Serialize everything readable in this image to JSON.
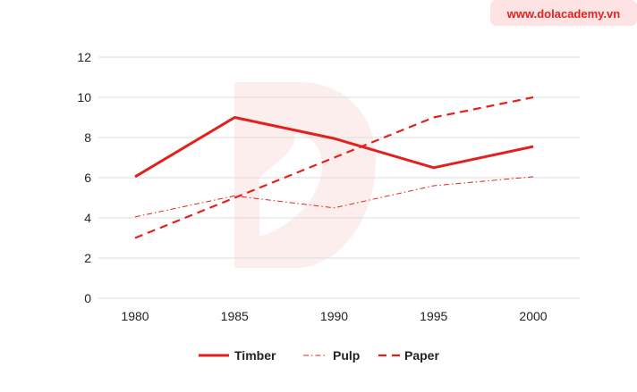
{
  "watermark": {
    "text": "www.dolacademy.vn",
    "text_color": "#e3211c",
    "badge_color": "#fde3e3"
  },
  "colors": {
    "accent": "#e3211c",
    "grid": "#dcdcdc",
    "logo_tint": "#fdeeee"
  },
  "chart_data": {
    "type": "line",
    "categories": [
      "1980",
      "1985",
      "1990",
      "1995",
      "2000"
    ],
    "series": [
      {
        "name": "Timber",
        "values": [
          6.05,
          9.0,
          7.95,
          6.5,
          7.55
        ],
        "style": "solid"
      },
      {
        "name": "Pulp",
        "values": [
          4.05,
          5.1,
          4.5,
          5.6,
          6.05
        ],
        "style": "dash-dot"
      },
      {
        "name": "Paper",
        "values": [
          3.0,
          5.0,
          7.0,
          9.0,
          10.0
        ],
        "style": "dashed"
      }
    ],
    "yticks": [
      "0",
      "2",
      "4",
      "6",
      "8",
      "10",
      "12"
    ],
    "ylim": [
      0,
      12
    ],
    "grid": "horizontal",
    "legend_position": "bottom"
  }
}
